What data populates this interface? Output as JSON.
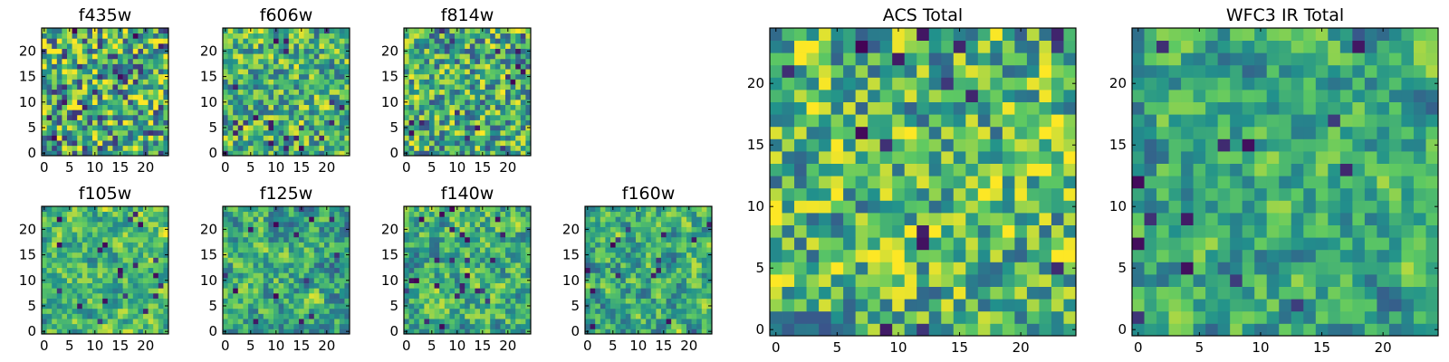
{
  "chart_data": {
    "type": "heatmap",
    "colormap": "viridis",
    "colors": {
      "low": "#440154",
      "lowmid": "#3b528b",
      "mid": "#21918c",
      "highmid": "#5ec962",
      "high": "#fde725"
    },
    "panels": [
      {
        "id": "f435w",
        "title": "f435w",
        "nx": 25,
        "ny": 25,
        "xticks": [
          0,
          5,
          10,
          15,
          20
        ],
        "yticks": [
          0,
          5,
          10,
          15,
          20
        ],
        "seed": 11,
        "smooth": 0.0,
        "bias": 0.6
      },
      {
        "id": "f606w",
        "title": "f606w",
        "nx": 25,
        "ny": 25,
        "xticks": [
          0,
          5,
          10,
          15,
          20
        ],
        "yticks": [
          0,
          5,
          10,
          15,
          20
        ],
        "seed": 23,
        "smooth": 0.3,
        "bias": 0.65
      },
      {
        "id": "f814w",
        "title": "f814w",
        "nx": 25,
        "ny": 25,
        "xticks": [
          0,
          5,
          10,
          15,
          20
        ],
        "yticks": [
          0,
          5,
          10,
          15,
          20
        ],
        "seed": 37,
        "smooth": 0.2,
        "bias": 0.62
      },
      {
        "id": "f105w",
        "title": "f105w",
        "nx": 25,
        "ny": 25,
        "xticks": [
          0,
          5,
          10,
          15,
          20
        ],
        "yticks": [
          0,
          5,
          10,
          15,
          20
        ],
        "seed": 41,
        "smooth": 0.55,
        "bias": 0.66
      },
      {
        "id": "f125w",
        "title": "f125w",
        "nx": 25,
        "ny": 25,
        "xticks": [
          0,
          5,
          10,
          15,
          20
        ],
        "yticks": [
          0,
          5,
          10,
          15,
          20
        ],
        "seed": 53,
        "smooth": 0.5,
        "bias": 0.6
      },
      {
        "id": "f140w",
        "title": "f140w",
        "nx": 25,
        "ny": 25,
        "xticks": [
          0,
          5,
          10,
          15,
          20
        ],
        "yticks": [
          0,
          5,
          10,
          15,
          20
        ],
        "seed": 67,
        "smooth": 0.5,
        "bias": 0.64
      },
      {
        "id": "f160w",
        "title": "f160w",
        "nx": 25,
        "ny": 25,
        "xticks": [
          0,
          5,
          10,
          15,
          20
        ],
        "yticks": [
          0,
          5,
          10,
          15,
          20
        ],
        "seed": 79,
        "smooth": 0.5,
        "bias": 0.62
      },
      {
        "id": "acs-total",
        "title": "ACS Total",
        "nx": 25,
        "ny": 25,
        "xticks": [
          0,
          5,
          10,
          15,
          20
        ],
        "yticks": [
          0,
          5,
          10,
          15,
          20
        ],
        "seed": 97,
        "smooth": 0.25,
        "bias": 0.66
      },
      {
        "id": "wfc3-ir-total",
        "title": "WFC3 IR Total",
        "nx": 25,
        "ny": 25,
        "xticks": [
          0,
          5,
          10,
          15,
          20
        ],
        "yticks": [
          0,
          5,
          10,
          15,
          20
        ],
        "seed": 113,
        "smooth": 0.55,
        "bias": 0.6
      }
    ]
  }
}
